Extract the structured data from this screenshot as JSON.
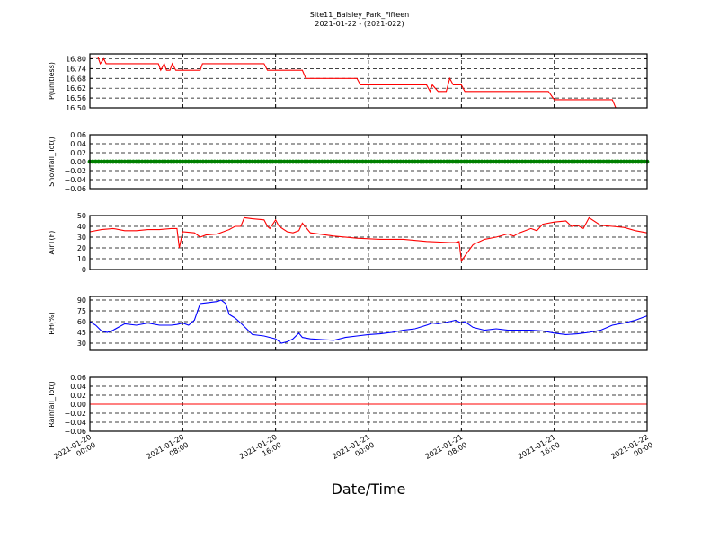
{
  "figure": {
    "title_line1": "Site11_Baisley_Park_Fifteen",
    "title_line2": "2021-01-22 - (2021-022)",
    "xlabel": "Date/Time",
    "x_tick_labels": [
      [
        "2021-01-20",
        "00:00"
      ],
      [
        "2021-01-20",
        "08:00"
      ],
      [
        "2021-01-20",
        "16:00"
      ],
      [
        "2021-01-21",
        "00:00"
      ],
      [
        "2021-01-21",
        "08:00"
      ],
      [
        "2021-01-21",
        "16:00"
      ],
      [
        "2021-01-22",
        "00:00"
      ]
    ]
  },
  "chart_data": [
    {
      "type": "line",
      "ylabel": "P(unitless)",
      "ylim": [
        16.5,
        16.83
      ],
      "yticks": [
        "16.80",
        "16.74",
        "16.68",
        "16.62",
        "16.56",
        "16.50"
      ],
      "ytick_values": [
        16.8,
        16.74,
        16.68,
        16.62,
        16.56,
        16.5
      ],
      "xlim_hours": [
        0,
        48
      ],
      "grid": true,
      "color": "#ff0000",
      "x": [
        0,
        0.7,
        0.9,
        1.2,
        1.4,
        2,
        3,
        4,
        5,
        5.9,
        6.1,
        6.4,
        6.6,
        6.9,
        7.1,
        7.4,
        8,
        9,
        9.5,
        9.7,
        11,
        12,
        13,
        14,
        15,
        15.3,
        16,
        17,
        18,
        18.3,
        18.6,
        20,
        21,
        22,
        23,
        23.3,
        24,
        26,
        28,
        29,
        29.3,
        29.5,
        30,
        30.7,
        31,
        31.3,
        32,
        32.3,
        33,
        35,
        37,
        39,
        39.5,
        40,
        41,
        42,
        43,
        44,
        45,
        45.3,
        46,
        47,
        48
      ],
      "y": [
        16.81,
        16.81,
        16.77,
        16.8,
        16.77,
        16.77,
        16.77,
        16.77,
        16.77,
        16.77,
        16.73,
        16.77,
        16.73,
        16.73,
        16.77,
        16.73,
        16.73,
        16.73,
        16.73,
        16.77,
        16.77,
        16.77,
        16.77,
        16.77,
        16.77,
        16.73,
        16.73,
        16.73,
        16.73,
        16.73,
        16.68,
        16.68,
        16.68,
        16.68,
        16.68,
        16.64,
        16.64,
        16.64,
        16.64,
        16.64,
        16.6,
        16.64,
        16.6,
        16.6,
        16.68,
        16.64,
        16.64,
        16.6,
        16.6,
        16.6,
        16.6,
        16.6,
        16.6,
        16.55,
        16.55,
        16.55,
        16.55,
        16.55,
        16.55,
        16.5,
        16.5,
        16.5,
        16.5
      ]
    },
    {
      "type": "scatter",
      "ylabel": "Snowfall_Tot()",
      "ylim": [
        -0.06,
        0.06
      ],
      "yticks": [
        "0.06",
        "0.04",
        "0.02",
        "0.00",
        "−0.02",
        "−0.04",
        "−0.06"
      ],
      "ytick_values": [
        0.06,
        0.04,
        0.02,
        0.0,
        -0.02,
        -0.04,
        -0.06
      ],
      "xlim_hours": [
        0,
        48
      ],
      "grid": true,
      "color": "#008000",
      "constant_value": 0.0,
      "sample_interval_minutes": 15
    },
    {
      "type": "line",
      "ylabel": "AirT(F)",
      "ylim": [
        0,
        50
      ],
      "yticks": [
        "50",
        "40",
        "30",
        "20",
        "10",
        "0"
      ],
      "ytick_values": [
        50,
        40,
        30,
        20,
        10,
        0
      ],
      "xlim_hours": [
        0,
        48
      ],
      "grid": true,
      "color": "#ff0000",
      "x": [
        0,
        1,
        2,
        3,
        4,
        5,
        6,
        7,
        7.5,
        7.7,
        8,
        9,
        9.5,
        10,
        11,
        11.5,
        12,
        12.5,
        13,
        13.3,
        14,
        15,
        15.3,
        15.5,
        16,
        16.3,
        17,
        17.5,
        18,
        18.3,
        19,
        21,
        23,
        25,
        27,
        29,
        31,
        31.5,
        31.8,
        32,
        33,
        34,
        35,
        36,
        36.5,
        37,
        38,
        38.5,
        39,
        40,
        41,
        41.5,
        42,
        42.5,
        43,
        44,
        45,
        46,
        47,
        48
      ],
      "y": [
        35,
        37,
        38,
        36,
        36,
        37,
        37,
        38,
        38,
        20,
        35,
        34,
        30,
        32,
        33,
        35,
        37,
        40,
        40,
        48,
        47,
        46,
        40,
        38,
        46,
        40,
        35,
        34,
        36,
        43,
        34,
        31,
        29,
        28,
        28,
        26,
        25,
        25,
        26,
        8,
        23,
        28,
        30,
        33,
        31,
        34,
        38,
        36,
        42,
        44,
        45,
        40,
        41,
        38,
        48,
        41,
        40,
        39,
        36,
        34
      ]
    },
    {
      "type": "line",
      "ylabel": "RH(%)",
      "ylim": [
        20,
        95
      ],
      "yticks": [
        "90",
        "75",
        "60",
        "45",
        "30"
      ],
      "ytick_values": [
        90,
        75,
        60,
        45,
        30
      ],
      "xlim_hours": [
        0,
        48
      ],
      "grid": true,
      "color": "#0000ff",
      "x": [
        0,
        0.5,
        1,
        1.5,
        2,
        3,
        4,
        5,
        6,
        7,
        7.5,
        8,
        8.5,
        9,
        9.5,
        10,
        11,
        11.3,
        11.7,
        12,
        12.5,
        13,
        14,
        15,
        15.5,
        16,
        16.5,
        17,
        17.5,
        18,
        18.3,
        19,
        20,
        21,
        22,
        23,
        24,
        25,
        26,
        27,
        28,
        29,
        29.5,
        30,
        31,
        31.5,
        32,
        32.3,
        33,
        34,
        35,
        36,
        37,
        38,
        39,
        40,
        41,
        42,
        43,
        44,
        45,
        46,
        47,
        48
      ],
      "y": [
        60,
        55,
        47,
        45,
        48,
        57,
        55,
        58,
        55,
        55,
        56,
        58,
        55,
        62,
        85,
        86,
        88,
        90,
        85,
        70,
        65,
        58,
        42,
        40,
        38,
        36,
        30,
        32,
        36,
        44,
        38,
        36,
        35,
        34,
        38,
        40,
        42,
        43,
        45,
        48,
        50,
        55,
        58,
        57,
        60,
        62,
        58,
        60,
        52,
        48,
        50,
        48,
        48,
        48,
        47,
        44,
        42,
        43,
        45,
        48,
        55,
        58,
        62,
        68
      ]
    },
    {
      "type": "line",
      "ylabel": "Rainfall_Tot()",
      "ylim": [
        -0.06,
        0.06
      ],
      "yticks": [
        "0.06",
        "0.04",
        "0.02",
        "0.00",
        "−0.02",
        "−0.04",
        "−0.06"
      ],
      "ytick_values": [
        0.06,
        0.04,
        0.02,
        0.0,
        -0.02,
        -0.04,
        -0.06
      ],
      "xlim_hours": [
        0,
        48
      ],
      "grid": true,
      "color": "#ff0000",
      "x": [
        0,
        48
      ],
      "y": [
        0.0,
        0.0
      ]
    }
  ]
}
